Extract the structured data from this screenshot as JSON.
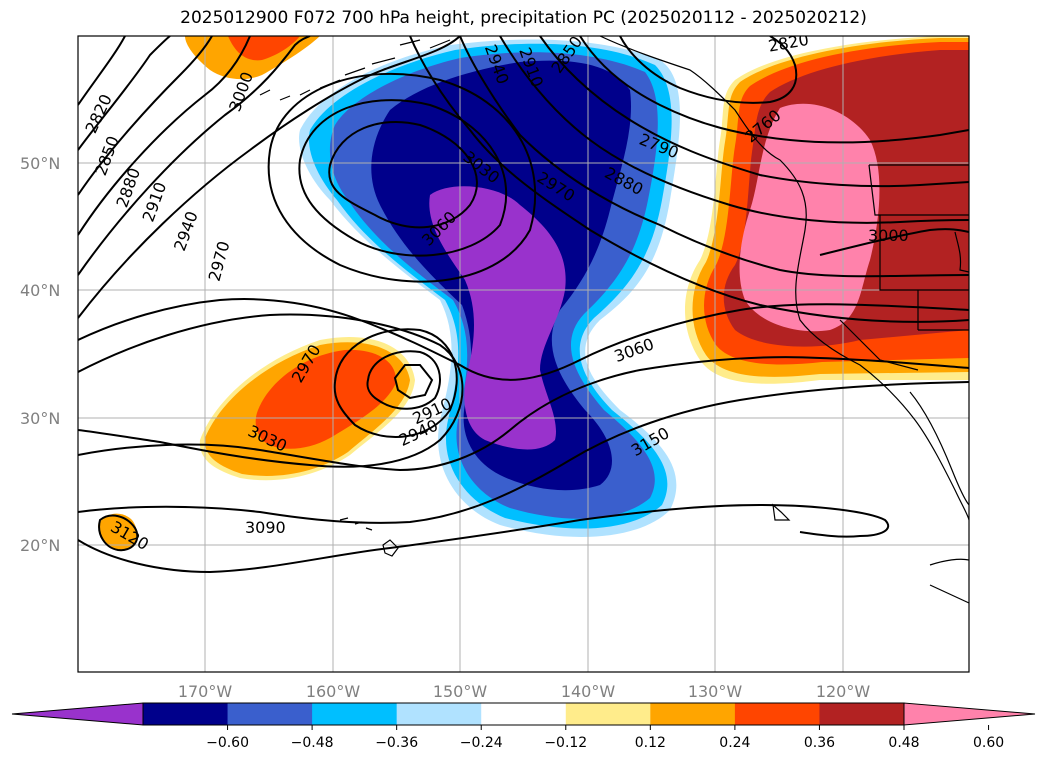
{
  "title": "2025012900 F072 700 hPa height, precipitation PC (2025020112 - 2025020212)",
  "latitude_labels": [
    "50°N",
    "40°N",
    "30°N",
    "20°N"
  ],
  "longitude_labels": [
    "170°W",
    "160°W",
    "150°W",
    "140°W",
    "130°W",
    "120°W"
  ],
  "height_contour_labels": [
    "2820",
    "2850",
    "2880",
    "2910",
    "2940",
    "2970",
    "3000",
    "3030",
    "3060",
    "3090",
    "3120",
    "3150",
    "2760",
    "2790"
  ],
  "map_labels": {
    "west_2820": "2820",
    "west_2850": "2850",
    "west_2880": "2880",
    "west_2910": "2910",
    "west_2940": "2940",
    "west_2970": "2970",
    "nw_3000": "3000",
    "center_2940": "2940",
    "center_2910": "2910",
    "top_2850": "2850",
    "top_2820": "2820",
    "gulf_2790": "2790",
    "bc_2760": "2760",
    "low_3060": "3060",
    "low_3030": "3030",
    "mid_2970": "2970",
    "mid_2880": "2880",
    "east_3000": "3000",
    "ridge_3060": "3060",
    "sw_2970": "2970",
    "sw_3030": "3030",
    "cut_2910": "2910",
    "cut_2940": "2940",
    "south_3150": "3150",
    "south_3090": "3090",
    "south_3120": "3120"
  },
  "colorbar": {
    "tick_labels": [
      "−0.60",
      "−0.48",
      "−0.36",
      "−0.24",
      "−0.12",
      "0.12",
      "0.24",
      "0.36",
      "0.48",
      "0.60"
    ],
    "colors": [
      "#9932cc",
      "#00008b",
      "#3a5fcd",
      "#00bfff",
      "#b0e2ff",
      "#ffffff",
      "#ffec8b",
      "#ffa500",
      "#ff4500",
      "#b22222",
      "#ff82ab"
    ]
  },
  "colors": {
    "strong_negative": "#9932cc",
    "navy": "#00008b",
    "royal_blue": "#3a5fcd",
    "deep_sky": "#00bfff",
    "light_blue": "#b0e2ff",
    "light_yellow": "#ffec8b",
    "orange": "#ffa500",
    "orange_red": "#ff4500",
    "firebrick": "#b22222",
    "pink": "#ff82ab",
    "gridline": "#b0b0b0",
    "tick_text": "#808080"
  }
}
